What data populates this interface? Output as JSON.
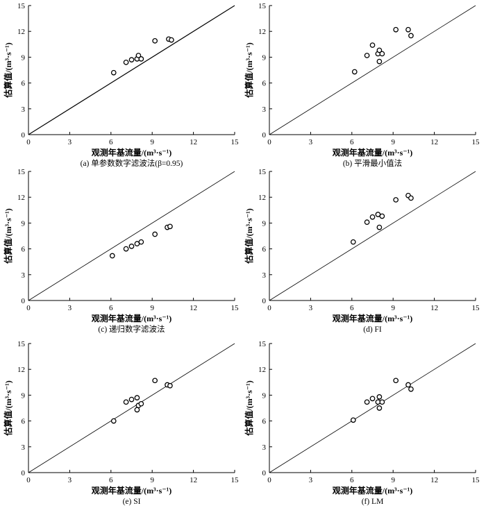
{
  "chart_data": [
    {
      "type": "scatter",
      "title": "",
      "caption": "(a) 单参数数字滤波法(β=0.95)",
      "xlabel": "观测年基流量/(m³·s⁻¹)",
      "ylabel": "估算值/(m³·s⁻¹)",
      "xlim": [
        0,
        15
      ],
      "ylim": [
        0,
        15
      ],
      "xticks": [
        0,
        3,
        6,
        9,
        12,
        15
      ],
      "yticks": [
        0,
        3,
        6,
        9,
        12,
        15
      ],
      "reference_line": "1:1",
      "grid": false,
      "points": [
        [
          6.2,
          7.2
        ],
        [
          7.1,
          8.4
        ],
        [
          7.5,
          8.7
        ],
        [
          7.9,
          8.8
        ],
        [
          8.0,
          9.2
        ],
        [
          8.2,
          8.8
        ],
        [
          9.2,
          10.9
        ],
        [
          10.2,
          11.1
        ],
        [
          10.4,
          11.0
        ]
      ]
    },
    {
      "type": "scatter",
      "title": "",
      "caption": "(b) 平滑最小值法",
      "xlabel": "观测年基流量/(m³·s⁻¹)",
      "ylabel": "估算值/(m³·s⁻¹)",
      "xlim": [
        0,
        15
      ],
      "ylim": [
        0,
        15
      ],
      "xticks": [
        0,
        3,
        6,
        9,
        12,
        15
      ],
      "yticks": [
        0,
        3,
        6,
        9,
        12,
        15
      ],
      "reference_line": "1:1",
      "grid": false,
      "points": [
        [
          6.2,
          7.3
        ],
        [
          7.1,
          9.2
        ],
        [
          7.5,
          10.4
        ],
        [
          7.9,
          9.4
        ],
        [
          8.0,
          9.8
        ],
        [
          8.2,
          9.4
        ],
        [
          8.0,
          8.5
        ],
        [
          9.2,
          12.2
        ],
        [
          10.1,
          12.2
        ],
        [
          10.3,
          11.5
        ]
      ]
    },
    {
      "type": "scatter",
      "title": "",
      "caption": "(c) 递归数字滤波法",
      "xlabel": "观测年基流量/(m³·s⁻¹)",
      "ylabel": "估算值/(m³·s⁻¹)",
      "xlim": [
        0,
        15
      ],
      "ylim": [
        0,
        15
      ],
      "xticks": [
        0,
        3,
        6,
        9,
        12,
        15
      ],
      "yticks": [
        0,
        3,
        6,
        9,
        12,
        15
      ],
      "reference_line": "1:1",
      "grid": false,
      "points": [
        [
          6.1,
          5.2
        ],
        [
          7.1,
          6.0
        ],
        [
          7.5,
          6.3
        ],
        [
          7.9,
          6.6
        ],
        [
          8.2,
          6.8
        ],
        [
          9.2,
          7.7
        ],
        [
          10.1,
          8.5
        ],
        [
          10.3,
          8.6
        ]
      ]
    },
    {
      "type": "scatter",
      "title": "",
      "caption": "(d) FI",
      "xlabel": "观测年基流量/(m³·s⁻¹)",
      "ylabel": "估算值/(m³·s⁻¹)",
      "xlim": [
        0,
        15
      ],
      "ylim": [
        0,
        15
      ],
      "xticks": [
        0,
        3,
        6,
        9,
        12,
        15
      ],
      "yticks": [
        0,
        3,
        6,
        9,
        12,
        15
      ],
      "reference_line": "1:1",
      "grid": false,
      "points": [
        [
          6.1,
          6.8
        ],
        [
          7.1,
          9.1
        ],
        [
          7.5,
          9.7
        ],
        [
          7.9,
          10.0
        ],
        [
          8.2,
          9.8
        ],
        [
          8.0,
          8.5
        ],
        [
          9.2,
          11.7
        ],
        [
          10.1,
          12.2
        ],
        [
          10.3,
          11.9
        ]
      ]
    },
    {
      "type": "scatter",
      "title": "",
      "caption": "(e) SI",
      "xlabel": "观测年基流量/(m³·s⁻¹)",
      "ylabel": "估算值/(m³·s⁻¹)",
      "xlim": [
        0,
        15
      ],
      "ylim": [
        0,
        15
      ],
      "xticks": [
        0,
        3,
        6,
        9,
        12,
        15
      ],
      "yticks": [
        0,
        3,
        6,
        9,
        12,
        15
      ],
      "reference_line": "1:1",
      "grid": false,
      "points": [
        [
          6.2,
          6.0
        ],
        [
          7.1,
          8.2
        ],
        [
          7.5,
          8.5
        ],
        [
          7.9,
          8.7
        ],
        [
          8.0,
          7.8
        ],
        [
          8.2,
          8.0
        ],
        [
          7.9,
          7.3
        ],
        [
          9.2,
          10.7
        ],
        [
          10.1,
          10.2
        ],
        [
          10.3,
          10.1
        ]
      ]
    },
    {
      "type": "scatter",
      "title": "",
      "caption": "(f) LM",
      "xlabel": "观测年基流量/(m³·s⁻¹)",
      "ylabel": "估算值/(m³·s⁻¹)",
      "xlim": [
        0,
        15
      ],
      "ylim": [
        0,
        15
      ],
      "xticks": [
        0,
        3,
        6,
        9,
        12,
        15
      ],
      "yticks": [
        0,
        3,
        6,
        9,
        12,
        15
      ],
      "reference_line": "1:1",
      "grid": false,
      "points": [
        [
          6.1,
          6.1
        ],
        [
          7.1,
          8.2
        ],
        [
          7.5,
          8.6
        ],
        [
          7.9,
          8.2
        ],
        [
          8.0,
          8.8
        ],
        [
          8.2,
          8.2
        ],
        [
          8.0,
          7.5
        ],
        [
          9.2,
          10.7
        ],
        [
          10.1,
          10.2
        ],
        [
          10.3,
          9.7
        ]
      ]
    }
  ]
}
